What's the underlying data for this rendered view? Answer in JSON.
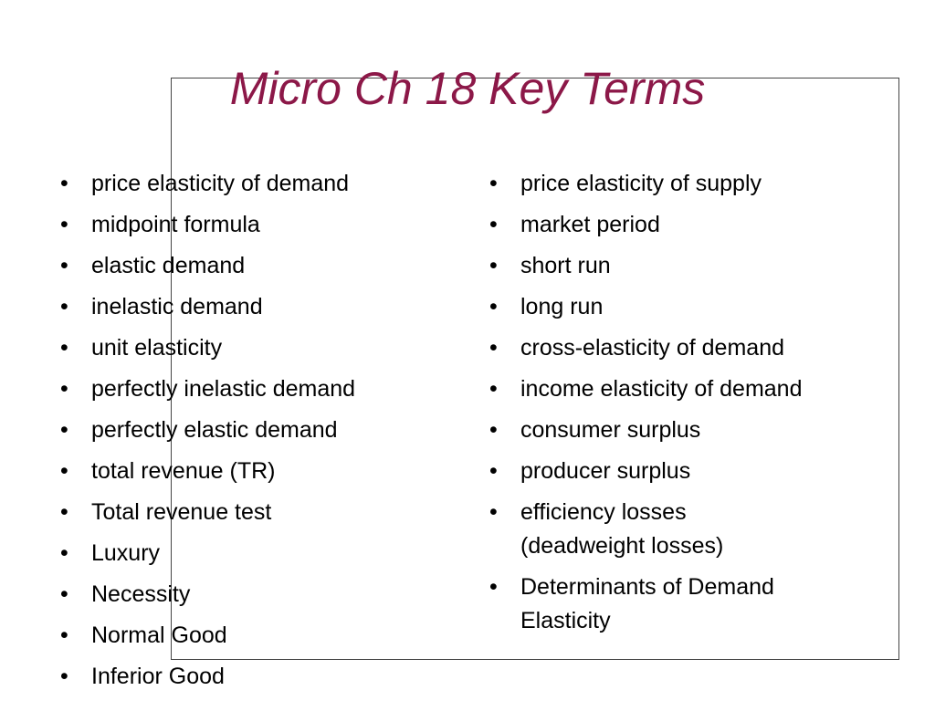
{
  "title": "Micro Ch 18 Key Terms",
  "left_column": [
    "price elasticity of demand",
    "midpoint formula",
    "elastic demand",
    "inelastic demand",
    "unit elasticity",
    "perfectly inelastic demand",
    "perfectly elastic demand",
    "total revenue (TR)",
    "Total revenue test",
    "Luxury",
    "Necessity",
    "Normal Good",
    "Inferior Good"
  ],
  "right_column": [
    "price elasticity of supply",
    "market period",
    "short run",
    "long run",
    "cross-elasticity of demand",
    "income elasticity of demand",
    "consumer surplus",
    "producer surplus",
    [
      "efficiency losses",
      "(deadweight losses)"
    ],
    [
      "Determinants of Demand",
      "Elasticity"
    ]
  ]
}
